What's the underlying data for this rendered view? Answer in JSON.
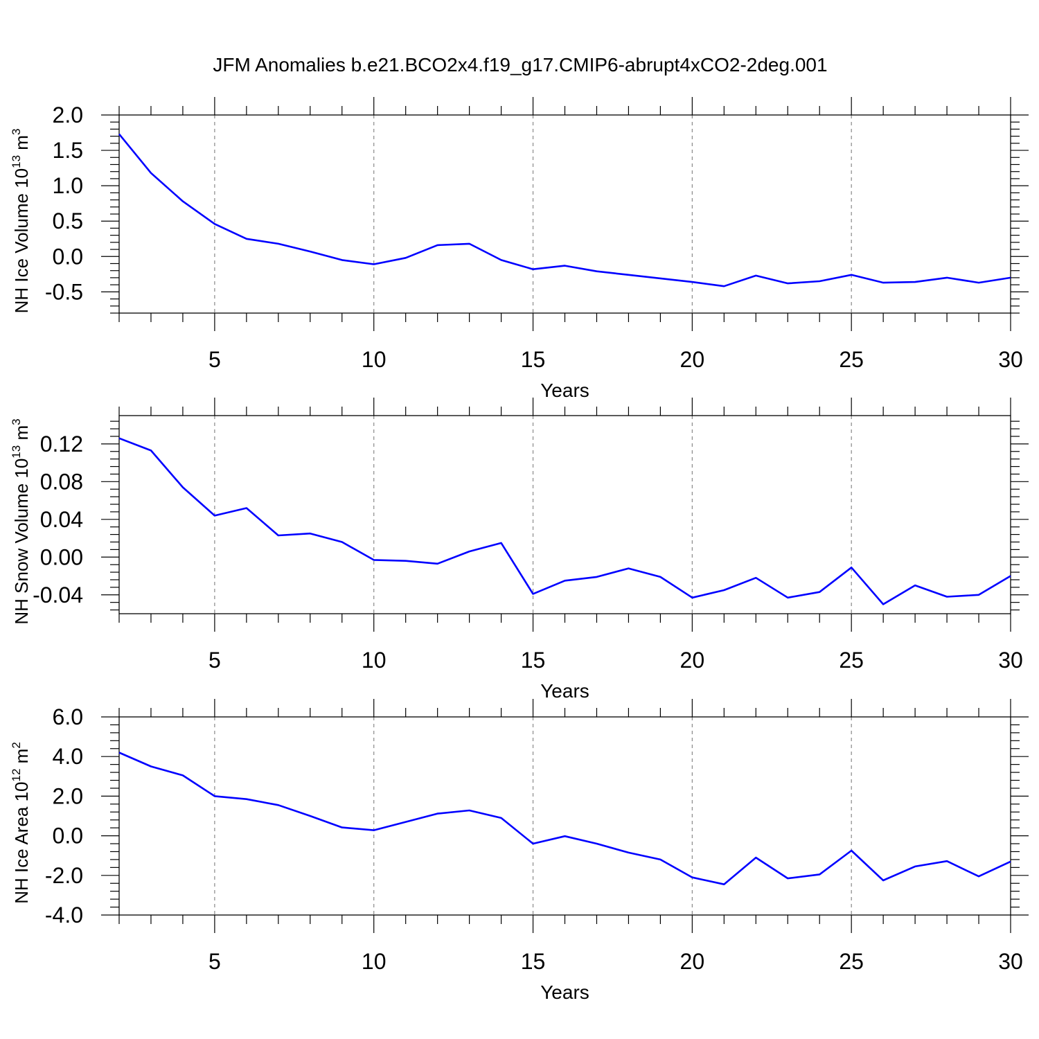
{
  "title": "JFM Anomalies b.e21.BCO2x4.f19_g17.CMIP6-abrupt4xCO2-2deg.001",
  "colors": {
    "series": "#0000ff",
    "grid": "#888888",
    "axes": "#000000"
  },
  "chart_data": [
    {
      "type": "line",
      "xlabel": "Years",
      "ylabel": "NH Ice Volume 10",
      "ylabel_exp": "13",
      "ylabel_unit": " m",
      "ylabel_unit_exp": "3",
      "xlim": [
        2,
        30
      ],
      "ylim": [
        -0.8,
        2.0
      ],
      "xticks": [
        5,
        10,
        15,
        20,
        25,
        30
      ],
      "yticks": [
        2.0,
        1.5,
        1.0,
        0.5,
        0.0,
        -0.5
      ],
      "ytick_labels": [
        "2.0",
        "1.5",
        "1.0",
        "0.5",
        "0.0",
        "-0.5"
      ],
      "grid": "vertical dashed at major x ticks",
      "x": [
        2,
        3,
        4,
        5,
        6,
        7,
        8,
        9,
        10,
        11,
        12,
        13,
        14,
        15,
        16,
        17,
        18,
        19,
        20,
        21,
        22,
        23,
        24,
        25,
        26,
        27,
        28,
        29,
        30
      ],
      "y": [
        1.73,
        1.18,
        0.78,
        0.46,
        0.25,
        0.18,
        0.07,
        -0.05,
        -0.11,
        -0.02,
        0.16,
        0.18,
        -0.05,
        -0.18,
        -0.13,
        -0.21,
        -0.26,
        -0.31,
        -0.36,
        -0.42,
        -0.27,
        -0.38,
        -0.35,
        -0.26,
        -0.37,
        -0.36,
        -0.3,
        -0.37,
        -0.3
      ]
    },
    {
      "type": "line",
      "xlabel": "Years",
      "ylabel": "NH Snow Volume 10",
      "ylabel_exp": "13",
      "ylabel_unit": " m",
      "ylabel_unit_exp": "3",
      "xlim": [
        2,
        30
      ],
      "ylim": [
        -0.06,
        0.15
      ],
      "xticks": [
        5,
        10,
        15,
        20,
        25,
        30
      ],
      "yticks": [
        0.12,
        0.08,
        0.04,
        0.0,
        -0.04
      ],
      "ytick_labels": [
        "0.12",
        "0.08",
        "0.04",
        "0.00",
        "-0.04"
      ],
      "grid": "vertical dashed at major x ticks",
      "x": [
        2,
        3,
        4,
        5,
        6,
        7,
        8,
        9,
        10,
        11,
        12,
        13,
        14,
        15,
        16,
        17,
        18,
        19,
        20,
        21,
        22,
        23,
        24,
        25,
        26,
        27,
        28,
        29,
        30
      ],
      "y": [
        0.126,
        0.113,
        0.074,
        0.044,
        0.052,
        0.023,
        0.025,
        0.016,
        -0.003,
        -0.004,
        -0.007,
        0.006,
        0.015,
        -0.039,
        -0.025,
        -0.021,
        -0.012,
        -0.021,
        -0.043,
        -0.035,
        -0.022,
        -0.043,
        -0.037,
        -0.011,
        -0.05,
        -0.03,
        -0.042,
        -0.04,
        -0.02
      ]
    },
    {
      "type": "line",
      "xlabel": "Years",
      "ylabel": "NH Ice Area 10",
      "ylabel_exp": "12",
      "ylabel_unit": " m",
      "ylabel_unit_exp": "2",
      "xlim": [
        2,
        30
      ],
      "ylim": [
        -4.0,
        6.0
      ],
      "xticks": [
        5,
        10,
        15,
        20,
        25,
        30
      ],
      "yticks": [
        6.0,
        4.0,
        2.0,
        0.0,
        -2.0,
        -4.0
      ],
      "ytick_labels": [
        "6.0",
        "4.0",
        "2.0",
        "0.0",
        "-2.0",
        "-4.0"
      ],
      "grid": "vertical dashed at major x ticks",
      "x": [
        2,
        3,
        4,
        5,
        6,
        7,
        8,
        9,
        10,
        11,
        12,
        13,
        14,
        15,
        16,
        17,
        18,
        19,
        20,
        21,
        22,
        23,
        24,
        25,
        26,
        27,
        28,
        29,
        30
      ],
      "y": [
        4.2,
        3.5,
        3.05,
        2.0,
        1.85,
        1.55,
        1.0,
        0.42,
        0.28,
        0.7,
        1.12,
        1.28,
        0.9,
        -0.4,
        -0.02,
        -0.4,
        -0.85,
        -1.2,
        -2.1,
        -2.45,
        -1.1,
        -2.15,
        -1.95,
        -0.75,
        -2.25,
        -1.55,
        -1.28,
        -2.05,
        -1.3
      ]
    }
  ]
}
